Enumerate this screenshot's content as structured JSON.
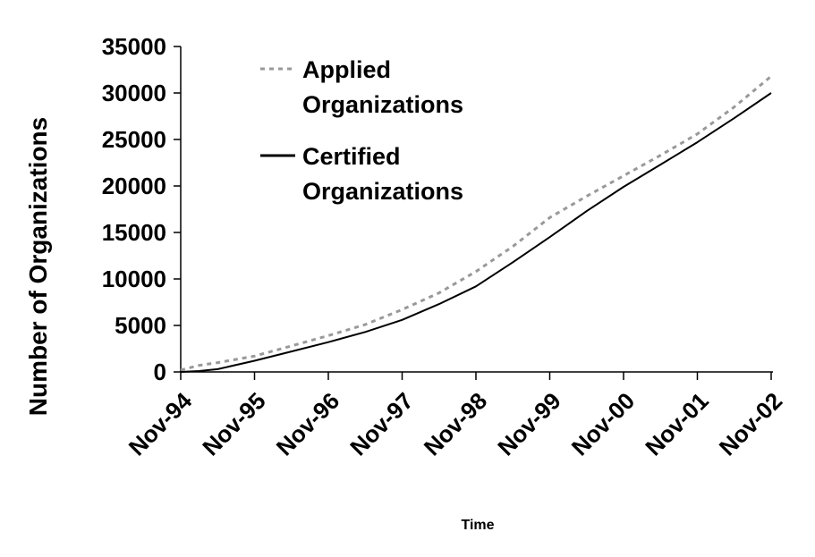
{
  "chart_data": {
    "type": "line",
    "title": "",
    "xlabel": "Time",
    "ylabel": "Number of Organizations",
    "categories": [
      "Nov-94",
      "Nov-95",
      "Nov-96",
      "Nov-97",
      "Nov-98",
      "Nov-99",
      "Nov-00",
      "Nov-01",
      "Nov-02"
    ],
    "ylim": [
      0,
      35000
    ],
    "yticks": [
      "0",
      "5000",
      "10000",
      "15000",
      "20000",
      "25000",
      "30000",
      "35000"
    ],
    "grid": false,
    "legend_position": "top-left",
    "series": [
      {
        "name": "Applied Organizations",
        "style": "dotted",
        "color": "#999999",
        "x": [
          0,
          0.25,
          0.5,
          1,
          1.5,
          2,
          2.5,
          3,
          3.5,
          4,
          4.5,
          5,
          5.5,
          6,
          6.5,
          7,
          7.5,
          8
        ],
        "values": [
          200,
          700,
          1000,
          1700,
          2800,
          3900,
          5100,
          6700,
          8500,
          10800,
          13500,
          16600,
          18900,
          21100,
          23300,
          25600,
          28500,
          31800
        ]
      },
      {
        "name": "Certified Organizations",
        "style": "solid",
        "color": "#000000",
        "x": [
          0,
          0.25,
          0.5,
          1,
          1.5,
          2,
          2.5,
          3,
          3.5,
          4,
          4.5,
          5,
          5.5,
          6,
          6.5,
          7,
          7.5,
          8
        ],
        "values": [
          0,
          100,
          300,
          1200,
          2200,
          3200,
          4300,
          5600,
          7300,
          9200,
          11800,
          14500,
          17300,
          19900,
          22300,
          24700,
          27300,
          30000
        ]
      }
    ]
  },
  "legend": {
    "applied_line1": "Applied",
    "applied_line2": "Organizations",
    "certified_line1": "Certified",
    "certified_line2": "Organizations"
  }
}
